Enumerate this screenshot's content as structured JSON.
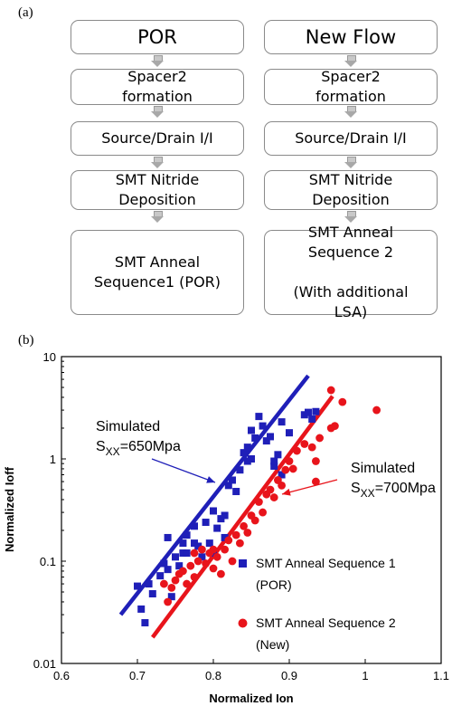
{
  "panel_a_label": "(a)",
  "panel_b_label": "(b)",
  "flow_left": {
    "title": "POR",
    "steps": [
      "Spacer2\nformation",
      "Source/Drain I/I",
      "SMT Nitride\nDeposition",
      "SMT Anneal\nSequence1 (POR)"
    ]
  },
  "flow_right": {
    "title": "New Flow",
    "steps": [
      "Spacer2\nformation",
      "Source/Drain I/I",
      "SMT Nitride\nDeposition",
      "SMT Anneal\nSequence 2\n\n(With additional\nLSA)"
    ]
  },
  "chart_data": {
    "type": "scatter",
    "xlabel": "Normalized Ion",
    "ylabel": "Normalized Ioff",
    "xlim": [
      0.6,
      1.1
    ],
    "ylim": [
      0.01,
      10
    ],
    "y_scale": "log",
    "x_ticks": [
      "0.6",
      "0.7",
      "0.8",
      "0.9",
      "1",
      "1.1"
    ],
    "y_ticks": [
      "0.01",
      "0.1",
      "1",
      "10"
    ],
    "colors": {
      "series1": "#1f1fb8",
      "series2": "#e8141b"
    },
    "series": [
      {
        "name": "SMT Anneal Sequence 1 (POR)",
        "legend_lines": [
          "SMT Anneal Sequence 1",
          "(POR)"
        ],
        "marker": "square",
        "fit_line": {
          "x": [
            0.678,
            0.925
          ],
          "y": [
            0.03,
            6.5
          ]
        },
        "points": [
          [
            0.7,
            0.057
          ],
          [
            0.705,
            0.034
          ],
          [
            0.71,
            0.025
          ],
          [
            0.715,
            0.06
          ],
          [
            0.72,
            0.048
          ],
          [
            0.73,
            0.072
          ],
          [
            0.735,
            0.095
          ],
          [
            0.74,
            0.17
          ],
          [
            0.74,
            0.083
          ],
          [
            0.745,
            0.045
          ],
          [
            0.75,
            0.11
          ],
          [
            0.755,
            0.09
          ],
          [
            0.76,
            0.12
          ],
          [
            0.76,
            0.15
          ],
          [
            0.765,
            0.18
          ],
          [
            0.765,
            0.12
          ],
          [
            0.775,
            0.22
          ],
          [
            0.775,
            0.15
          ],
          [
            0.78,
            0.14
          ],
          [
            0.785,
            0.11
          ],
          [
            0.79,
            0.24
          ],
          [
            0.795,
            0.15
          ],
          [
            0.8,
            0.12
          ],
          [
            0.8,
            0.31
          ],
          [
            0.805,
            0.21
          ],
          [
            0.81,
            0.26
          ],
          [
            0.815,
            0.17
          ],
          [
            0.815,
            0.28
          ],
          [
            0.82,
            0.55
          ],
          [
            0.825,
            0.62
          ],
          [
            0.83,
            0.48
          ],
          [
            0.835,
            0.78
          ],
          [
            0.84,
            1.15
          ],
          [
            0.845,
            1.3
          ],
          [
            0.845,
            0.95
          ],
          [
            0.85,
            1.0
          ],
          [
            0.85,
            1.9
          ],
          [
            0.855,
            1.6
          ],
          [
            0.86,
            2.6
          ],
          [
            0.865,
            2.1
          ],
          [
            0.87,
            1.5
          ],
          [
            0.875,
            1.65
          ],
          [
            0.88,
            0.85
          ],
          [
            0.88,
            0.95
          ],
          [
            0.885,
            1.1
          ],
          [
            0.89,
            0.7
          ],
          [
            0.89,
            2.3
          ],
          [
            0.9,
            1.8
          ],
          [
            0.92,
            2.7
          ],
          [
            0.925,
            2.85
          ],
          [
            0.93,
            2.45
          ],
          [
            0.935,
            2.9
          ]
        ]
      },
      {
        "name": "SMT Anneal Sequence 2 (New)",
        "legend_lines": [
          "SMT Anneal Sequence 2",
          "(New)"
        ],
        "marker": "circle",
        "fit_line": {
          "x": [
            0.72,
            0.957
          ],
          "y": [
            0.018,
            4.1
          ]
        },
        "points": [
          [
            0.735,
            0.06
          ],
          [
            0.74,
            0.04
          ],
          [
            0.745,
            0.055
          ],
          [
            0.75,
            0.065
          ],
          [
            0.755,
            0.075
          ],
          [
            0.76,
            0.08
          ],
          [
            0.765,
            0.06
          ],
          [
            0.77,
            0.09
          ],
          [
            0.775,
            0.12
          ],
          [
            0.775,
            0.07
          ],
          [
            0.78,
            0.1
          ],
          [
            0.785,
            0.13
          ],
          [
            0.79,
            0.095
          ],
          [
            0.795,
            0.12
          ],
          [
            0.8,
            0.085
          ],
          [
            0.8,
            0.13
          ],
          [
            0.805,
            0.11
          ],
          [
            0.81,
            0.075
          ],
          [
            0.815,
            0.13
          ],
          [
            0.82,
            0.16
          ],
          [
            0.825,
            0.1
          ],
          [
            0.83,
            0.18
          ],
          [
            0.835,
            0.15
          ],
          [
            0.84,
            0.22
          ],
          [
            0.845,
            0.19
          ],
          [
            0.85,
            0.28
          ],
          [
            0.855,
            0.25
          ],
          [
            0.86,
            0.38
          ],
          [
            0.865,
            0.3
          ],
          [
            0.87,
            0.45
          ],
          [
            0.875,
            0.5
          ],
          [
            0.88,
            0.42
          ],
          [
            0.885,
            0.62
          ],
          [
            0.89,
            0.55
          ],
          [
            0.895,
            0.78
          ],
          [
            0.9,
            0.95
          ],
          [
            0.905,
            0.8
          ],
          [
            0.91,
            1.2
          ],
          [
            0.92,
            1.4
          ],
          [
            0.93,
            1.3
          ],
          [
            0.935,
            0.6
          ],
          [
            0.935,
            0.95
          ],
          [
            0.94,
            1.6
          ],
          [
            0.955,
            2.0
          ],
          [
            0.955,
            4.7
          ],
          [
            0.96,
            2.1
          ],
          [
            0.97,
            3.6
          ],
          [
            1.015,
            3.0
          ]
        ]
      }
    ],
    "annotations": [
      {
        "lines": [
          "Simulated",
          "S",
          "XX",
          "=650Mpa"
        ],
        "color": "#1f1fb8"
      },
      {
        "lines": [
          "Simulated",
          "S",
          "XX",
          "=700Mpa"
        ],
        "color": "#e8141b"
      }
    ]
  }
}
